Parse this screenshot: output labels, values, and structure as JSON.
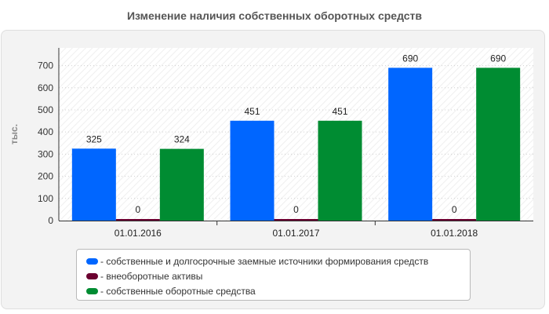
{
  "chart_data": {
    "type": "bar",
    "title": "Изменение наличия собственных оборотных средств",
    "ylabel": "тыс.",
    "xlabel": "",
    "categories": [
      "01.01.2016",
      "01.01.2017",
      "01.01.2018"
    ],
    "ylim": [
      0,
      780
    ],
    "yticks": [
      0,
      100,
      200,
      300,
      400,
      500,
      600,
      700
    ],
    "grid": true,
    "legend_position": "bottom",
    "series": [
      {
        "name": "- собственные и долгосрочные заемные источники формирования средств",
        "color": "#0066ff",
        "values": [
          325,
          451,
          690
        ]
      },
      {
        "name": "- внеоборотные активы",
        "color": "#6b0030",
        "values": [
          0,
          0,
          0
        ]
      },
      {
        "name": "- собственные оборотные средства",
        "color": "#008c32",
        "values": [
          324,
          451,
          690
        ]
      }
    ]
  }
}
